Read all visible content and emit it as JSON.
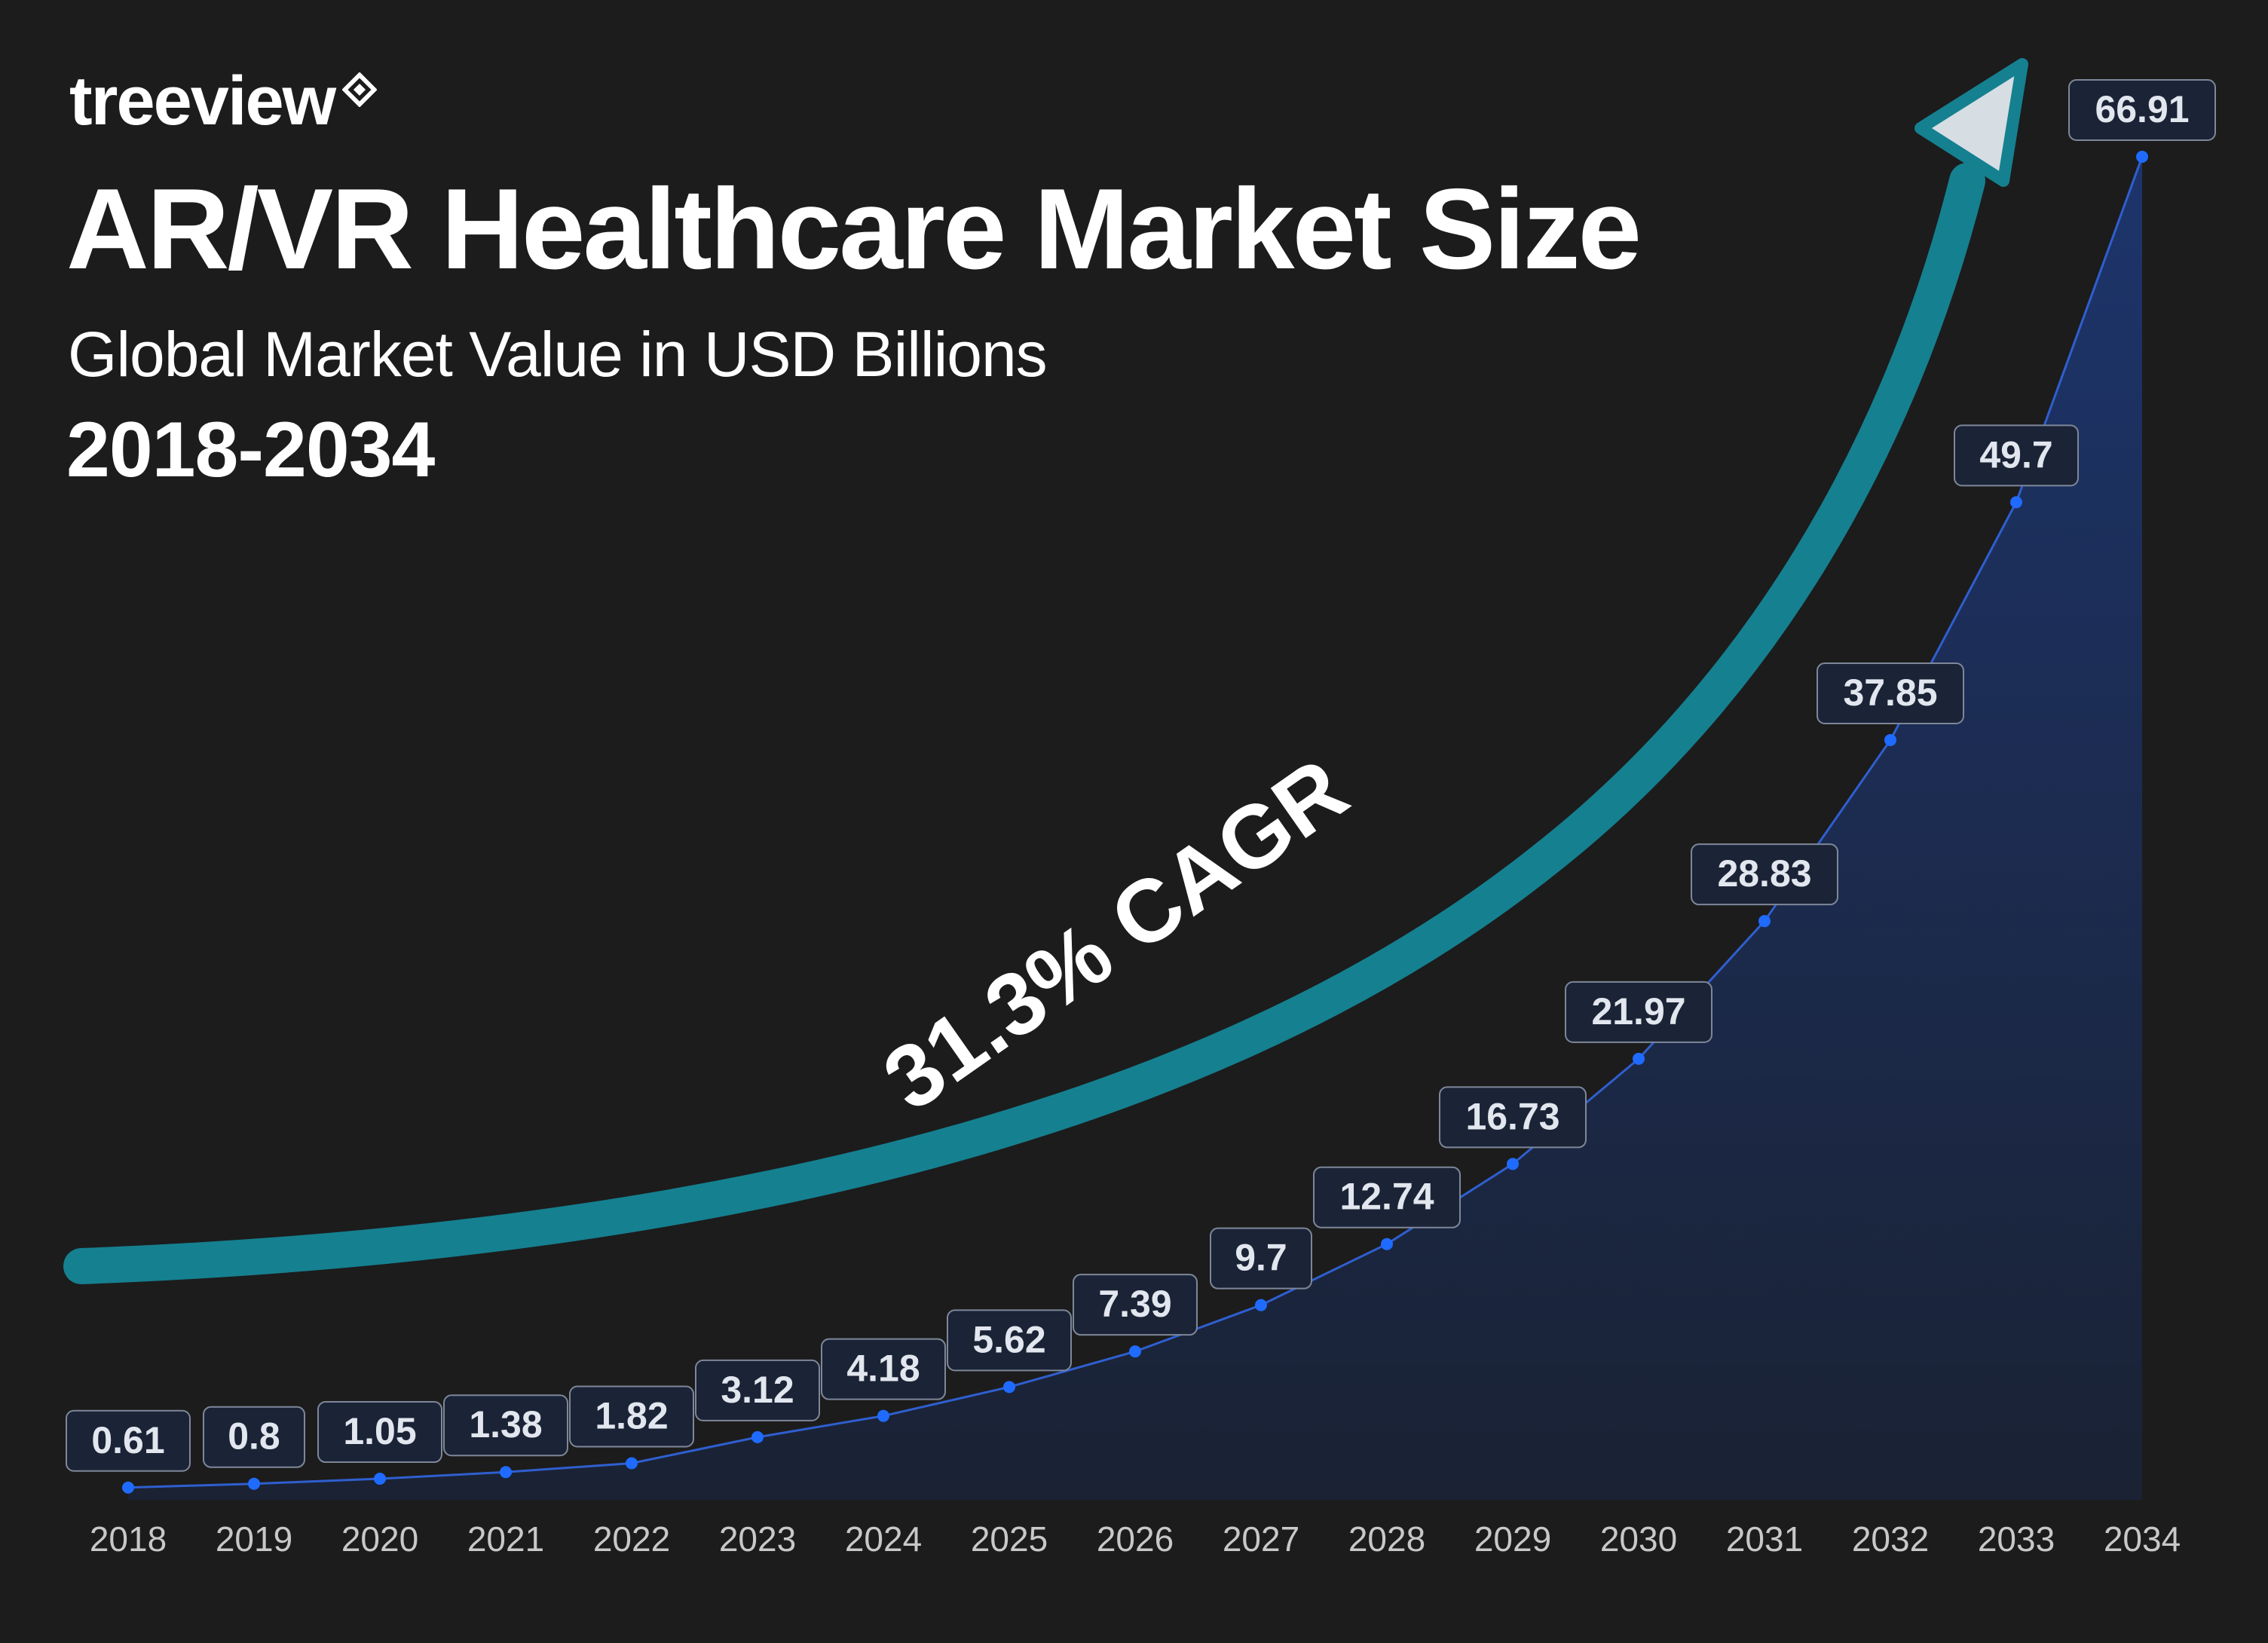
{
  "brand": {
    "name": "treeview",
    "icon": "diamond-logo-icon"
  },
  "header": {
    "title": "AR/VR Healthcare Market Size",
    "subtitle": "Global Market Value in USD Billions",
    "years": "2018-2034"
  },
  "annotation": {
    "cagr_label": "31.3% CAGR"
  },
  "colors": {
    "background": "#1c1c1c",
    "arrow": "#158090",
    "arrow_head_fill": "#d6dee4",
    "line": "#2f5fcf",
    "point": "#1f6bff",
    "area": "#1a2f60",
    "label_bg": "#1b2436",
    "label_border": "#7e8799",
    "label_text": "#e2e6ee",
    "axis_text": "#c8c8c8"
  },
  "chart_data": {
    "type": "area",
    "categories": [
      "2018",
      "2019",
      "2020",
      "2021",
      "2022",
      "2023",
      "2024",
      "2025",
      "2026",
      "2027",
      "2028",
      "2029",
      "2030",
      "2031",
      "2032",
      "2033",
      "2034"
    ],
    "values": [
      0.61,
      0.8,
      1.05,
      1.38,
      1.82,
      3.12,
      4.18,
      5.62,
      7.39,
      9.7,
      12.74,
      16.73,
      21.97,
      28.83,
      37.85,
      49.7,
      66.91
    ],
    "data_labels": [
      "0.61",
      "0.8",
      "1.05",
      "1.38",
      "1.82",
      "3.12",
      "4.18",
      "5.62",
      "7.39",
      "9.7",
      "12.74",
      "16.73",
      "21.97",
      "28.83",
      "37.85",
      "49.7",
      "66.91"
    ],
    "title": "AR/VR Healthcare Market Size",
    "xlabel": "",
    "ylabel": "",
    "ylim": [
      0,
      66.91
    ],
    "grid": false,
    "legend": "none"
  }
}
